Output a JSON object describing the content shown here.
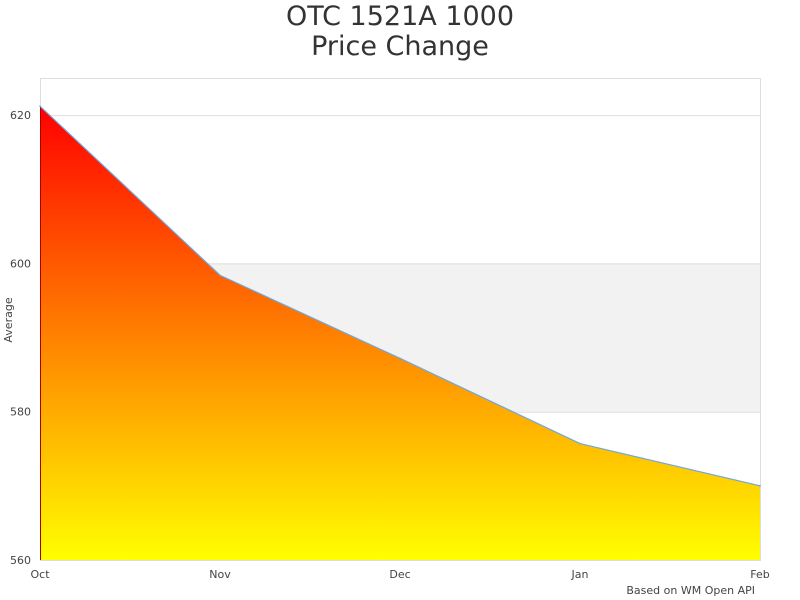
{
  "chart_data": {
    "type": "area",
    "title_line1": "OTC 1521A 1000",
    "title_line2": "Price Change",
    "xlabel": "",
    "ylabel": "Average",
    "categories": [
      "Oct",
      "Nov",
      "Dec",
      "Jan",
      "Feb"
    ],
    "series": [
      {
        "values": [
          621.2,
          598.4,
          587.2,
          575.7,
          570.0
        ]
      }
    ],
    "ylim": [
      560,
      625
    ],
    "yticks": [
      560,
      580,
      600,
      620
    ],
    "grid": true,
    "legend": "none",
    "fill_gradient": [
      "#ff0000",
      "#ffff00"
    ],
    "line_color": "#6fa8e0",
    "band_color": "#f2f2f2",
    "credit": "Based on WM Open API"
  }
}
